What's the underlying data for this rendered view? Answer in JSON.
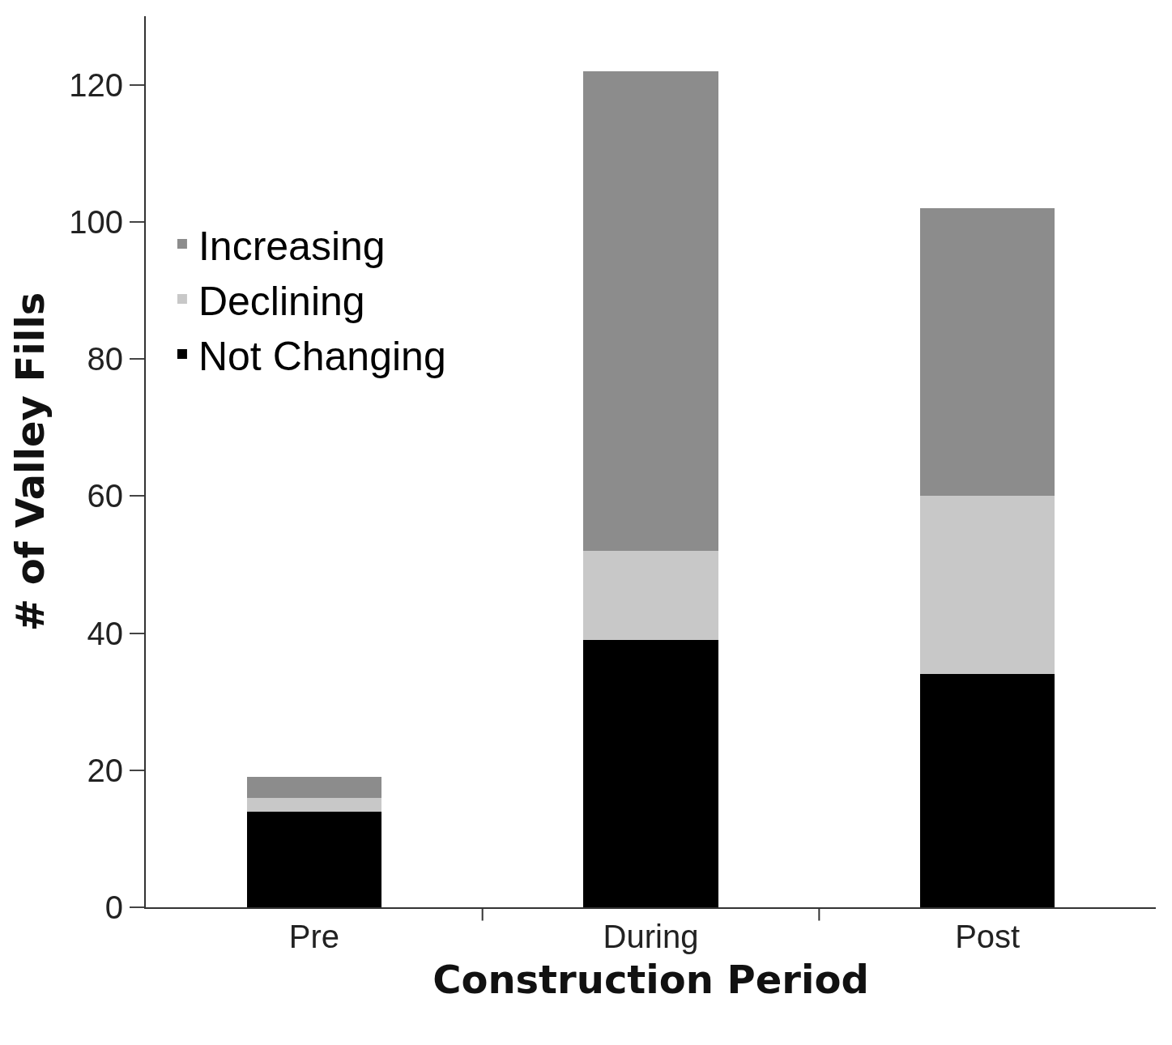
{
  "chart_data": {
    "type": "bar",
    "stacked": true,
    "xlabel": "Construction Period",
    "ylabel": "# of Valley Fills",
    "categories": [
      "Pre",
      "During",
      "Post"
    ],
    "series": [
      {
        "name": "Not Changing",
        "color": "#000000",
        "values": [
          14,
          39,
          34
        ]
      },
      {
        "name": "Declining",
        "color": "#c8c8c8",
        "values": [
          2,
          13,
          26
        ]
      },
      {
        "name": "Increasing",
        "color": "#8c8c8c",
        "values": [
          3,
          70,
          42
        ]
      }
    ],
    "ylim": [
      0,
      130
    ],
    "yticks": [
      0,
      20,
      40,
      60,
      80,
      100,
      120
    ],
    "legend": "top left"
  }
}
